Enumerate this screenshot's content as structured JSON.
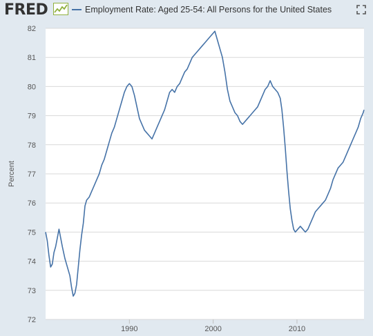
{
  "header": {
    "logo": "FRED",
    "legend_label": "Employment Rate: Aged 25-54: All Persons for the United States"
  },
  "icons": {
    "logo_graph": "mini-line-graph-icon",
    "fullscreen": "fullscreen-corners-icon"
  },
  "colors": {
    "background": "#e1e9f0",
    "plot_background": "#ffffff",
    "series": "#4572a7",
    "grid": "#d8d8d8",
    "text": "#555555"
  },
  "chart_data": {
    "type": "line",
    "xlabel": "",
    "ylabel": "Percent",
    "xlim": [
      1980.0,
      2018.0
    ],
    "ylim": [
      72,
      82
    ],
    "y_ticks": [
      72,
      73,
      74,
      75,
      76,
      77,
      78,
      79,
      80,
      81,
      82
    ],
    "x_ticks": [
      1990,
      2000,
      2010
    ],
    "grid": "horizontal",
    "legend_position": "top",
    "series": [
      {
        "name": "Employment Rate: Aged 25-54: All Persons for the United States",
        "points": [
          [
            1980.0,
            75.0
          ],
          [
            1980.2,
            74.7
          ],
          [
            1980.4,
            74.2
          ],
          [
            1980.6,
            73.8
          ],
          [
            1980.8,
            73.9
          ],
          [
            1981.0,
            74.3
          ],
          [
            1981.2,
            74.5
          ],
          [
            1981.4,
            74.8
          ],
          [
            1981.6,
            75.1
          ],
          [
            1981.8,
            74.8
          ],
          [
            1982.0,
            74.5
          ],
          [
            1982.3,
            74.1
          ],
          [
            1982.6,
            73.8
          ],
          [
            1982.9,
            73.5
          ],
          [
            1983.1,
            73.1
          ],
          [
            1983.3,
            72.8
          ],
          [
            1983.5,
            72.9
          ],
          [
            1983.7,
            73.2
          ],
          [
            1983.9,
            73.8
          ],
          [
            1984.1,
            74.4
          ],
          [
            1984.3,
            74.9
          ],
          [
            1984.5,
            75.3
          ],
          [
            1984.7,
            75.9
          ],
          [
            1984.9,
            76.1
          ],
          [
            1985.2,
            76.2
          ],
          [
            1985.5,
            76.4
          ],
          [
            1985.8,
            76.6
          ],
          [
            1986.1,
            76.8
          ],
          [
            1986.4,
            77.0
          ],
          [
            1986.7,
            77.3
          ],
          [
            1987.0,
            77.5
          ],
          [
            1987.3,
            77.8
          ],
          [
            1987.6,
            78.1
          ],
          [
            1987.9,
            78.4
          ],
          [
            1988.2,
            78.6
          ],
          [
            1988.5,
            78.9
          ],
          [
            1988.8,
            79.2
          ],
          [
            1989.1,
            79.5
          ],
          [
            1989.4,
            79.8
          ],
          [
            1989.7,
            80.0
          ],
          [
            1990.0,
            80.1
          ],
          [
            1990.3,
            80.0
          ],
          [
            1990.6,
            79.7
          ],
          [
            1990.9,
            79.3
          ],
          [
            1991.2,
            78.9
          ],
          [
            1991.5,
            78.7
          ],
          [
            1991.8,
            78.5
          ],
          [
            1992.1,
            78.4
          ],
          [
            1992.4,
            78.3
          ],
          [
            1992.7,
            78.2
          ],
          [
            1993.0,
            78.4
          ],
          [
            1993.3,
            78.6
          ],
          [
            1993.6,
            78.8
          ],
          [
            1993.9,
            79.0
          ],
          [
            1994.2,
            79.2
          ],
          [
            1994.5,
            79.5
          ],
          [
            1994.8,
            79.8
          ],
          [
            1995.1,
            79.9
          ],
          [
            1995.4,
            79.8
          ],
          [
            1995.7,
            80.0
          ],
          [
            1996.0,
            80.1
          ],
          [
            1996.3,
            80.3
          ],
          [
            1996.6,
            80.5
          ],
          [
            1996.9,
            80.6
          ],
          [
            1997.2,
            80.8
          ],
          [
            1997.5,
            81.0
          ],
          [
            1997.8,
            81.1
          ],
          [
            1998.1,
            81.2
          ],
          [
            1998.4,
            81.3
          ],
          [
            1998.7,
            81.4
          ],
          [
            1999.0,
            81.5
          ],
          [
            1999.3,
            81.6
          ],
          [
            1999.6,
            81.7
          ],
          [
            1999.9,
            81.8
          ],
          [
            2000.2,
            81.9
          ],
          [
            2000.5,
            81.6
          ],
          [
            2000.8,
            81.3
          ],
          [
            2001.1,
            81.0
          ],
          [
            2001.4,
            80.5
          ],
          [
            2001.7,
            79.9
          ],
          [
            2002.0,
            79.5
          ],
          [
            2002.3,
            79.3
          ],
          [
            2002.6,
            79.1
          ],
          [
            2002.9,
            79.0
          ],
          [
            2003.2,
            78.8
          ],
          [
            2003.5,
            78.7
          ],
          [
            2003.8,
            78.8
          ],
          [
            2004.1,
            78.9
          ],
          [
            2004.4,
            79.0
          ],
          [
            2004.7,
            79.1
          ],
          [
            2005.0,
            79.2
          ],
          [
            2005.3,
            79.3
          ],
          [
            2005.6,
            79.5
          ],
          [
            2005.9,
            79.7
          ],
          [
            2006.2,
            79.9
          ],
          [
            2006.5,
            80.0
          ],
          [
            2006.8,
            80.2
          ],
          [
            2007.1,
            80.0
          ],
          [
            2007.4,
            79.9
          ],
          [
            2007.7,
            79.8
          ],
          [
            2008.0,
            79.6
          ],
          [
            2008.2,
            79.2
          ],
          [
            2008.4,
            78.6
          ],
          [
            2008.6,
            77.9
          ],
          [
            2008.8,
            77.1
          ],
          [
            2009.0,
            76.4
          ],
          [
            2009.2,
            75.8
          ],
          [
            2009.4,
            75.4
          ],
          [
            2009.6,
            75.1
          ],
          [
            2009.8,
            75.0
          ],
          [
            2010.1,
            75.1
          ],
          [
            2010.4,
            75.2
          ],
          [
            2010.7,
            75.1
          ],
          [
            2011.0,
            75.0
          ],
          [
            2011.3,
            75.1
          ],
          [
            2011.6,
            75.3
          ],
          [
            2011.9,
            75.5
          ],
          [
            2012.2,
            75.7
          ],
          [
            2012.5,
            75.8
          ],
          [
            2012.8,
            75.9
          ],
          [
            2013.1,
            76.0
          ],
          [
            2013.4,
            76.1
          ],
          [
            2013.7,
            76.3
          ],
          [
            2014.0,
            76.5
          ],
          [
            2014.3,
            76.8
          ],
          [
            2014.6,
            77.0
          ],
          [
            2014.9,
            77.2
          ],
          [
            2015.2,
            77.3
          ],
          [
            2015.5,
            77.4
          ],
          [
            2015.8,
            77.6
          ],
          [
            2016.1,
            77.8
          ],
          [
            2016.4,
            78.0
          ],
          [
            2016.7,
            78.2
          ],
          [
            2017.0,
            78.4
          ],
          [
            2017.3,
            78.6
          ],
          [
            2017.6,
            78.9
          ],
          [
            2017.9,
            79.1
          ],
          [
            2018.0,
            79.2
          ]
        ]
      }
    ]
  }
}
